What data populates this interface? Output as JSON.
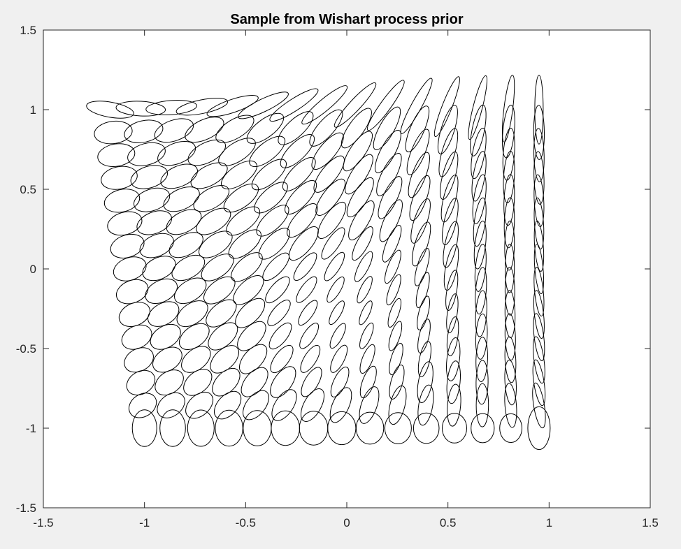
{
  "chart_data": {
    "type": "scatter",
    "title": "Sample from Wishart process prior",
    "xlabel": "",
    "ylabel": "",
    "xlim": [
      -1.5,
      1.5
    ],
    "ylim": [
      -1.5,
      1.5
    ],
    "x_ticks": [
      -1.5,
      -1,
      -0.5,
      0,
      0.5,
      1,
      1.5
    ],
    "y_ticks": [
      -1.5,
      -1,
      -0.5,
      0,
      0.5,
      1,
      1.5
    ],
    "x_tick_labels": [
      "-1.5",
      "-1",
      "-0.5",
      "0",
      "0.5",
      "1",
      "1.5"
    ],
    "y_tick_labels": [
      "-1.5",
      "-1",
      "-0.5",
      "0",
      "0.5",
      "1",
      "1.5"
    ],
    "grid": false,
    "box": true,
    "line_color": "#000000",
    "background_color": "#f0f0f0",
    "axes_color": "#ffffff",
    "ellipse_grid": {
      "description_rows": 15,
      "description_cols": 15,
      "x_range": [
        -1.0,
        0.95
      ],
      "y_range": [
        -1.0,
        1.0
      ]
    }
  }
}
